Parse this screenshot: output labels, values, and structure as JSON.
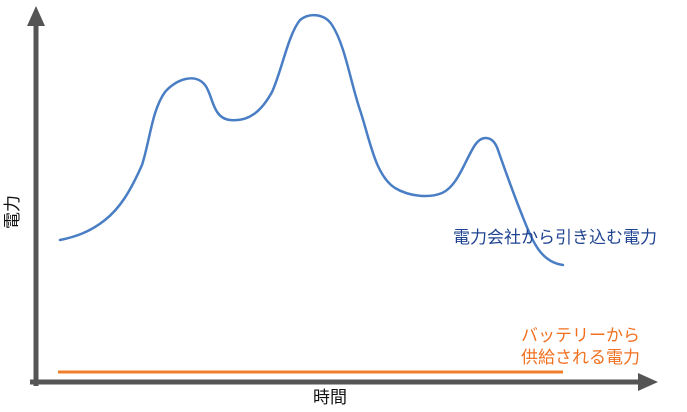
{
  "axes": {
    "y_label": "電力",
    "x_label": "時間"
  },
  "annotations": {
    "grid_power": "電力会社から引き込む電力",
    "battery_power": [
      "バッテリーから",
      "供給される電力"
    ]
  }
}
